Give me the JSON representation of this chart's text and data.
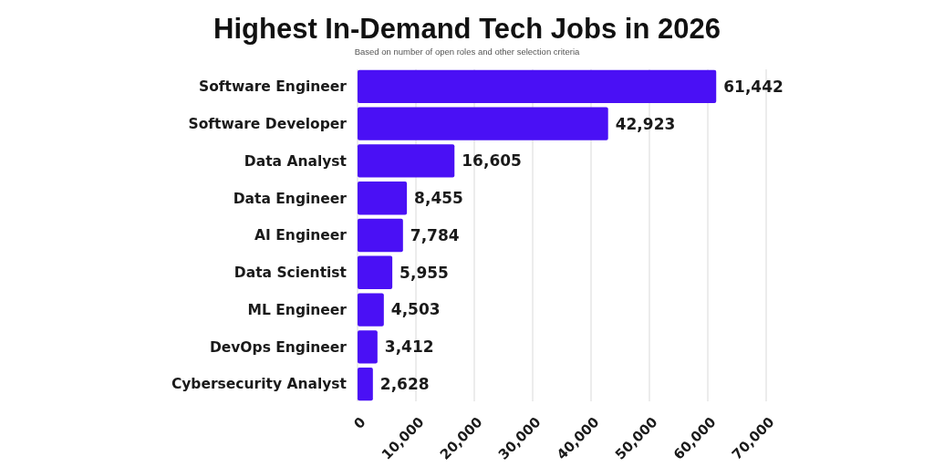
{
  "chart_data": {
    "type": "bar",
    "orientation": "horizontal",
    "title": "Highest In-Demand Tech Jobs in 2026",
    "subtitle": "Based on number of open roles and other selection criteria",
    "categories": [
      "Software Engineer",
      "Software Developer",
      "Data Analyst",
      "Data Engineer",
      "AI Engineer",
      "Data Scientist",
      "ML Engineer",
      "DevOps Engineer",
      "Cybersecurity Analyst"
    ],
    "values": [
      61442,
      42923,
      16605,
      8455,
      7784,
      5955,
      4503,
      3412,
      2628
    ],
    "value_labels": [
      "61,442",
      "42,923",
      "16,605",
      "8,455",
      "7,784",
      "5,955",
      "4,503",
      "3,412",
      "2,628"
    ],
    "color": "#4a10f5",
    "xlim": [
      0,
      70000
    ],
    "xticks": [
      0,
      {
        "value": 10000,
        "label": "10,000"
      },
      {
        "value": 20000,
        "label": "20,000"
      },
      {
        "value": 30000,
        "label": "30,000"
      },
      {
        "value": 40000,
        "label": "40,000"
      },
      {
        "value": 50000,
        "label": "50,000"
      },
      {
        "value": 60000,
        "label": "60,000"
      },
      {
        "value": 70000,
        "label": "70,000"
      }
    ],
    "grid": "x"
  }
}
